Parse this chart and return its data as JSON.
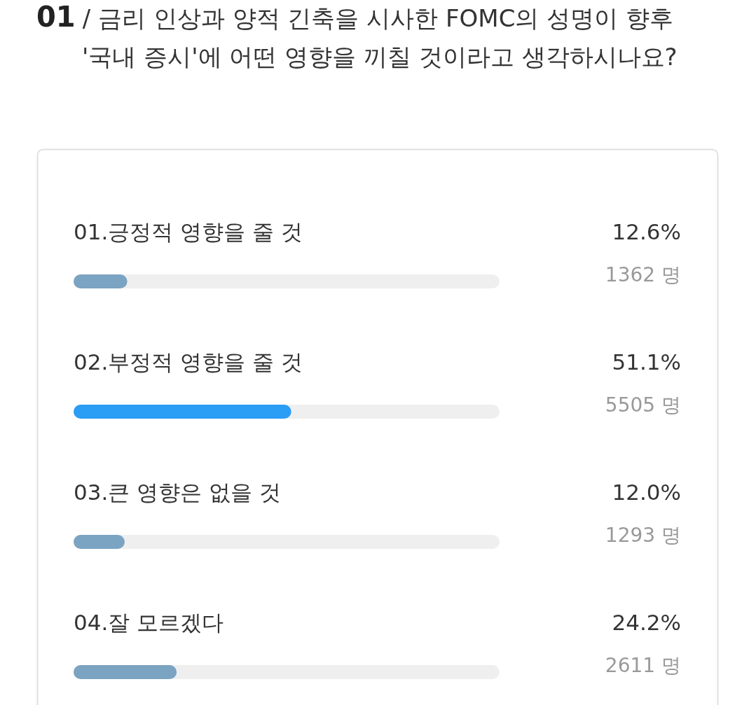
{
  "chart_data": {
    "type": "bar",
    "orientation": "horizontal",
    "title": "**01** / 금리 인상과 양적 긴축을 시사한 FOMC의 성명이 향후 '국내 증시'에 어떤 영향을 끼칠 것이라고 생각하시나요?",
    "categories": [
      "01.긍정적 영향을 줄 것",
      "02.부정적 영향을 줄 것",
      "03.큰 영향은 없을 것",
      "04.잘 모르겠다"
    ],
    "values": [
      12.6,
      51.1,
      12.0,
      24.2
    ],
    "colors": [
      "#7ba3c2",
      "#2a9df4",
      "#7ba3c2",
      "#7ba3c2"
    ],
    "value_labels": [
      "12.6%",
      "51.1%",
      "12.0%",
      "24.2%"
    ],
    "annotations": [
      "1362 명",
      "5505 명",
      "1293 명",
      "2611 명"
    ],
    "xlim": [
      0,
      100
    ]
  }
}
